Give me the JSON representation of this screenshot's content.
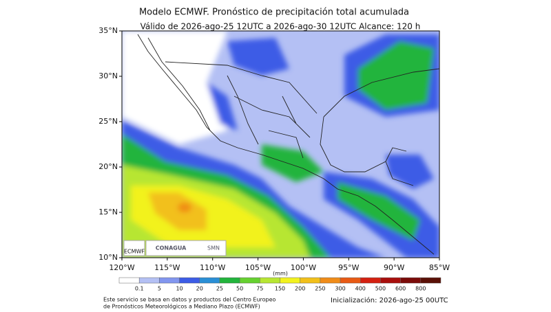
{
  "header": {
    "title": "Modelo ECMWF. Pronóstico de precipitación total acumulada",
    "subtitle": "Válido de 2026-ago-25 12UTC a 2026-ago-30 12UTC   Alcance: 120 h"
  },
  "map": {
    "lat_labels": [
      "35°N",
      "30°N",
      "25°N",
      "20°N",
      "15°N",
      "10°N"
    ],
    "lon_labels": [
      "120°W",
      "115°W",
      "110°W",
      "105°W",
      "100°W",
      "95°W",
      "90°W",
      "85°W"
    ],
    "logos": [
      "ECMWF",
      "CONAGUA",
      "SMN"
    ]
  },
  "colorbar": {
    "unit": "(mm)",
    "levels": [
      0.1,
      5,
      10,
      20,
      25,
      50,
      75,
      150,
      200,
      250,
      300,
      400,
      500,
      600,
      800
    ],
    "colors": [
      "#ffffff",
      "#b4c0f4",
      "#8296ef",
      "#3c5ce6",
      "#2a8fd6",
      "#22b43c",
      "#66d130",
      "#b7e632",
      "#f2f21e",
      "#f2c01a",
      "#f08c18",
      "#e85a14",
      "#d42010",
      "#a80e0c",
      "#7a0a08",
      "#5a1006"
    ]
  },
  "footer": {
    "note_lines": [
      "Este servicio se basa en datos y productos del Centro Europeo",
      "de Pronósticos Meteorológicos a Mediano Plazo (ECMWF)"
    ],
    "init": "Inicialización: 2026-ago-25 00UTC"
  }
}
